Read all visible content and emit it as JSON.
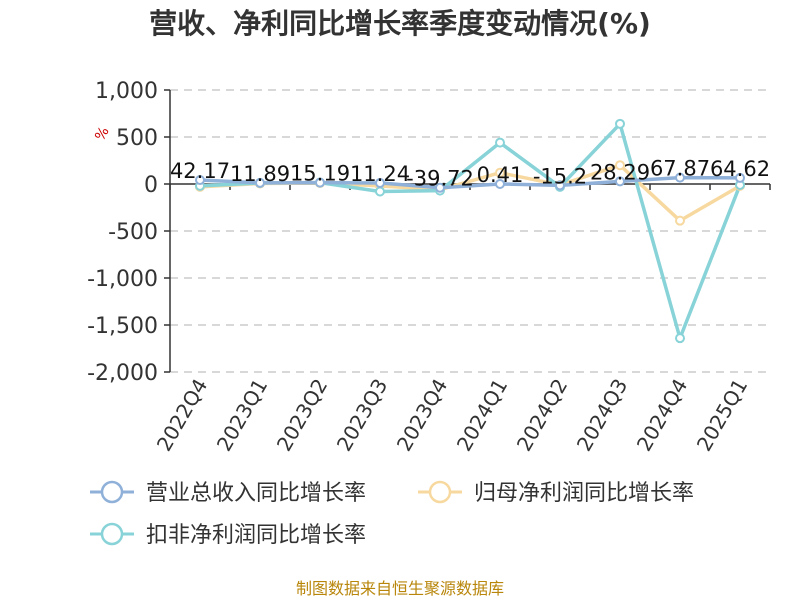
{
  "chart_data": {
    "type": "line",
    "title": "营收、净利同比增长率季度变动情况(%)",
    "unit_label": "%",
    "categories": [
      "2022Q4",
      "2023Q1",
      "2023Q2",
      "2023Q3",
      "2023Q4",
      "2024Q1",
      "2024Q2",
      "2024Q3",
      "2024Q4",
      "2025Q1"
    ],
    "ylim": [
      -2000,
      1000
    ],
    "yticks": [
      1000,
      500,
      0,
      -500,
      -1000,
      -1500,
      -2000
    ],
    "ytick_labels": [
      "1,000",
      "500",
      "0",
      "-500",
      "-1,000",
      "-1,500",
      "-2,000"
    ],
    "grid": true,
    "legend_position": "bottom",
    "series": [
      {
        "name": "营业总收入同比增长率",
        "color": "#8fb0d8",
        "values": [
          42.17,
          11.89,
          15.19,
          11.24,
          -39.72,
          0.41,
          -15.2,
          28.29,
          67.87,
          64.62
        ],
        "labels": [
          "42.17",
          "11.89",
          "15.19",
          "11.24",
          "-39.72",
          "0.41",
          "-15.2",
          "28.29",
          "67.87",
          "64.62"
        ]
      },
      {
        "name": "归母净利润同比增长率",
        "color": "#f7d9a0",
        "values": [
          -30,
          5,
          10,
          -20,
          -60,
          120,
          -10,
          200,
          -390,
          -20
        ]
      },
      {
        "name": "扣非净利润同比增长率",
        "color": "#88d3d8",
        "values": [
          -20,
          10,
          15,
          -80,
          -70,
          440,
          -30,
          640,
          -1640,
          -10
        ]
      }
    ],
    "source": "制图数据来自恒生聚源数据库"
  }
}
